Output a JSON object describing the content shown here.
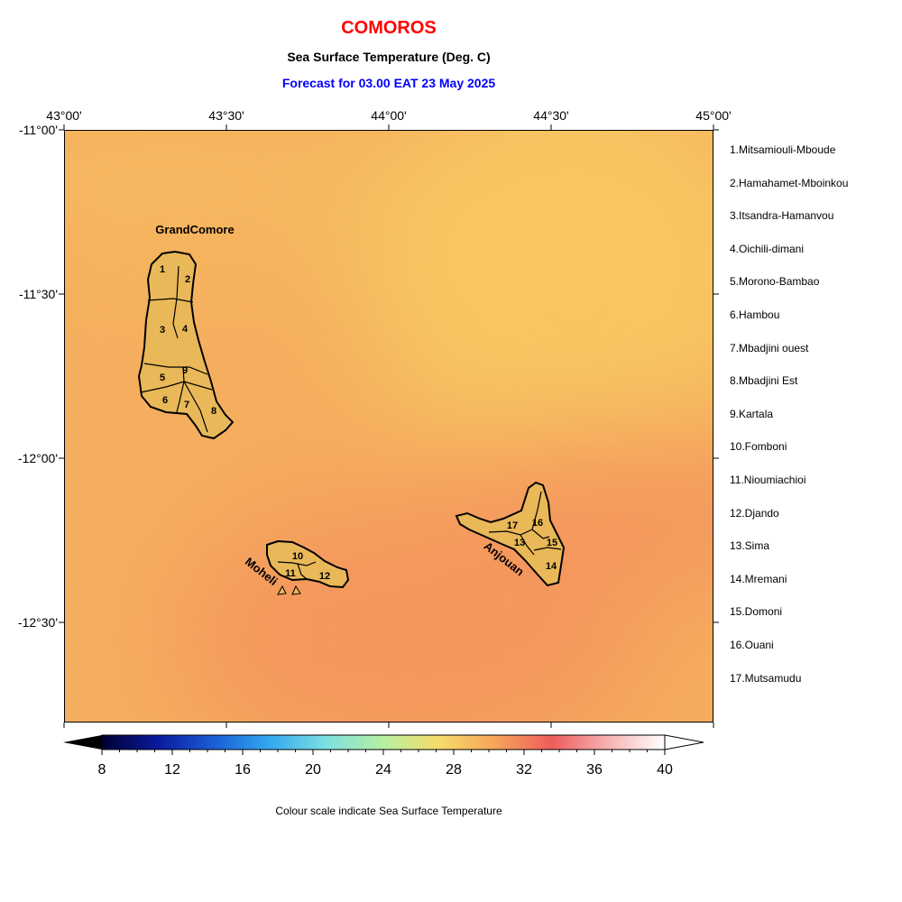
{
  "header": {
    "title": "COMOROS",
    "subtitle": "Sea Surface Temperature (Deg. C)",
    "forecast": "Forecast for  03.00 EAT 23 May 2025"
  },
  "axes": {
    "longitude_ticks": [
      "43°00'",
      "43°30'",
      "44°00'",
      "44°30'",
      "45°00'"
    ],
    "latitude_ticks": [
      "-11°00'",
      "-11°30'",
      "-12°00'",
      "-12°30'"
    ]
  },
  "map": {
    "extent": {
      "lon_min": 43.0,
      "lon_max": 45.0,
      "lat_max": -11.0,
      "lat_min": -12.8
    },
    "island_labels": {
      "grand_comore": "GrandComore",
      "moheli": "Moheli",
      "anjouan": "Anjouan"
    },
    "region_numbers": [
      "1",
      "2",
      "3",
      "4",
      "5",
      "6",
      "7",
      "8",
      "9",
      "10",
      "11",
      "12",
      "13",
      "14",
      "15",
      "16",
      "17"
    ],
    "island_fill": "#e9b858",
    "colors": {
      "sst_warm": "#f4975d",
      "sst_mid": "#f5ad5e",
      "sst_cool": "#f8c660"
    }
  },
  "legend": {
    "items": [
      "1.Mitsamiouli-Mboude",
      "2.Hamahamet-Mboinkou",
      "3.Itsandra-Hamanvou",
      "4.Oichili-dimani",
      "5.Morono-Bambao",
      "6.Hambou",
      "7.Mbadjini ouest",
      "8.Mbadjini Est",
      "9.Kartala",
      "10.Fomboni",
      "11.Nioumiachioi",
      "12.Djando",
      "13.Sima",
      "14.Mremani",
      "15.Domoni",
      "16.Ouani",
      "17.Mutsamudu"
    ]
  },
  "colorbar": {
    "tick_labels": [
      "8",
      "12",
      "16",
      "20",
      "24",
      "28",
      "32",
      "36",
      "40"
    ],
    "min": 8,
    "max": 40,
    "colors": [
      "#000033",
      "#0a1a9e",
      "#1a5fd6",
      "#33aaf0",
      "#7fe0e0",
      "#b6f0a0",
      "#f7dc6a",
      "#f6a35a",
      "#ef5c5c",
      "#f7b3b3",
      "#ffffff"
    ]
  },
  "caption": "Colour scale indicate Sea Surface Temperature"
}
